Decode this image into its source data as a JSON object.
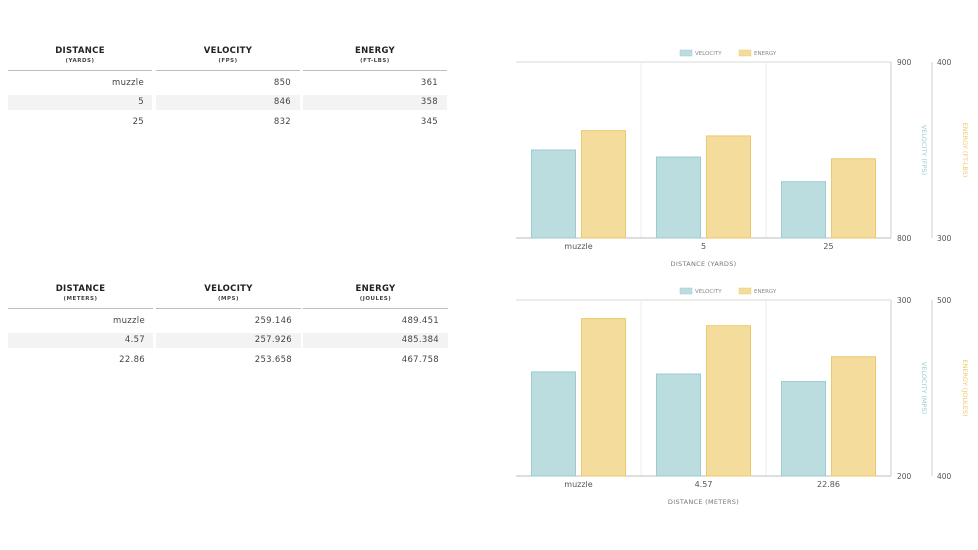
{
  "table1": {
    "headers": [
      {
        "title": "DISTANCE",
        "unit": "(YARDS)"
      },
      {
        "title": "VELOCITY",
        "unit": "(FPS)"
      },
      {
        "title": "ENERGY",
        "unit": "(FT-LBS)"
      }
    ],
    "rows": [
      [
        "muzzle",
        "850",
        "361"
      ],
      [
        "5",
        "846",
        "358"
      ],
      [
        "25",
        "832",
        "345"
      ]
    ]
  },
  "table2": {
    "headers": [
      {
        "title": "DISTANCE",
        "unit": "(METERS)"
      },
      {
        "title": "VELOCITY",
        "unit": "(MPS)"
      },
      {
        "title": "ENERGY",
        "unit": "(JOULES)"
      }
    ],
    "rows": [
      [
        "muzzle",
        "259.146",
        "489.451"
      ],
      [
        "4.57",
        "257.926",
        "485.384"
      ],
      [
        "22.86",
        "253.658",
        "467.758"
      ]
    ]
  },
  "colors": {
    "velocity": "#bcdde0",
    "velocity_stroke": "#9ccbd0",
    "energy": "#f4dc9c",
    "energy_stroke": "#ecc96c"
  },
  "chart_data": [
    {
      "type": "bar",
      "categories": [
        "muzzle",
        "5",
        "25"
      ],
      "series": [
        {
          "name": "VELOCITY",
          "values": [
            850,
            846,
            832
          ],
          "axis": "left"
        },
        {
          "name": "ENERGY",
          "values": [
            361,
            358,
            345
          ],
          "axis": "right"
        }
      ],
      "xlabel": "DISTANCE (YARDS)",
      "ylabel": "VELOCITY (FPS)",
      "y2label": "ENERGY (FT-LBS)",
      "ylim": [
        800,
        900
      ],
      "y2lim": [
        300,
        400
      ],
      "yticks": [
        "900",
        "800"
      ],
      "y2ticks": [
        "400",
        "300"
      ],
      "legend": "top-center",
      "grid": true
    },
    {
      "type": "bar",
      "categories": [
        "muzzle",
        "4.57",
        "22.86"
      ],
      "series": [
        {
          "name": "VELOCITY",
          "values": [
            259.146,
            257.926,
            253.658
          ],
          "axis": "left"
        },
        {
          "name": "ENERGY",
          "values": [
            489.451,
            485.384,
            467.758
          ],
          "axis": "right"
        }
      ],
      "xlabel": "DISTANCE (METERS)",
      "ylabel": "VELOCITY (MPS)",
      "y2label": "ENERGY (JOULES)",
      "ylim": [
        200,
        300
      ],
      "y2lim": [
        400,
        500
      ],
      "yticks": [
        "300",
        "200"
      ],
      "y2ticks": [
        "500",
        "400"
      ],
      "legend": "top-center",
      "grid": true
    }
  ]
}
